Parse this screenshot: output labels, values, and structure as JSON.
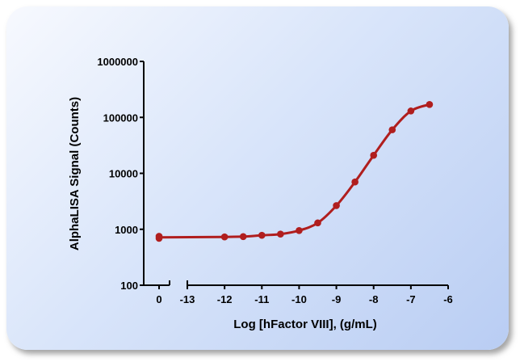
{
  "chart_data": {
    "type": "line",
    "xlabel": "Log [hFactor VIII], (g/mL)",
    "ylabel": "AlphaLISA Signal (Counts)",
    "yscale": "log",
    "ylim": [
      100,
      1000000
    ],
    "xlim": [
      -13,
      -6
    ],
    "y_ticks": [
      100,
      1000,
      10000,
      100000,
      1000000
    ],
    "y_tick_labels": [
      "100",
      "1000",
      "10000",
      "100000",
      "1000000"
    ],
    "x_ticks": [
      -13,
      -12,
      -11,
      -10,
      -9,
      -8,
      -7,
      -6
    ],
    "x_tick_labels": [
      "-13",
      "-12",
      "-11",
      "-10",
      "-9",
      "-8",
      "-7",
      "-6"
    ],
    "x_break": true,
    "zero_tick_label": "0",
    "grid": false,
    "color": "#b01e1e",
    "series": [
      {
        "zero_points": [
          750,
          690
        ],
        "x": [
          -12,
          -11.5,
          -11,
          -10.5,
          -10,
          -9.5,
          -9,
          -8.5,
          -8,
          -7.5,
          -7,
          -6.5
        ],
        "values": [
          730,
          740,
          780,
          820,
          950,
          1300,
          2650,
          7000,
          21000,
          60000,
          130000,
          170000
        ]
      }
    ]
  }
}
